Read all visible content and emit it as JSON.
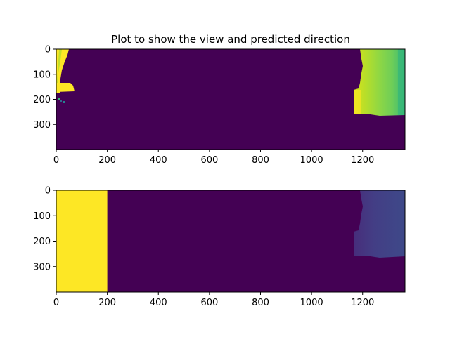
{
  "chart_data": [
    {
      "type": "heatmap",
      "title": "Plot to show the view and predicted direction",
      "image_width": 1366,
      "image_height": 400,
      "xlim": [
        0,
        1366
      ],
      "ylim": [
        400,
        0
      ],
      "xticks": [
        0,
        200,
        400,
        600,
        800,
        1000,
        1200
      ],
      "yticks": [
        0,
        100,
        200,
        300
      ],
      "colormap": "viridis",
      "regions": [
        {
          "name": "left-obstacle",
          "x_range": [
            0,
            75
          ],
          "y_range": [
            0,
            170
          ],
          "value": 0.96
        },
        {
          "name": "right-obstacle",
          "x_range": [
            1165,
            1366
          ],
          "y_range": [
            0,
            265
          ],
          "value_gradient": [
            0.93,
            0.6
          ]
        }
      ]
    },
    {
      "type": "heatmap",
      "title": "",
      "image_width": 1366,
      "image_height": 400,
      "xlim": [
        0,
        1366
      ],
      "ylim": [
        400,
        0
      ],
      "xticks": [
        0,
        200,
        400,
        600,
        800,
        1000,
        1200
      ],
      "yticks": [
        0,
        100,
        200,
        300
      ],
      "colormap": "viridis",
      "regions": [
        {
          "name": "predicted-direction-band",
          "x_range": [
            0,
            200
          ],
          "y_range": [
            0,
            400
          ],
          "value": 1.0
        },
        {
          "name": "right-obstacle",
          "x_range": [
            1165,
            1366
          ],
          "y_range": [
            0,
            265
          ],
          "value_gradient": [
            0.23,
            0.32
          ]
        }
      ]
    }
  ],
  "colors": {
    "background": "#440154",
    "bright": "#fde725",
    "yellow_green": "#b5de2b",
    "green": "#6ece58",
    "teal_green": "#35b779",
    "dark_purple_blue": "#433e85",
    "purple_blue": "#3e4989",
    "axis": "#000000"
  }
}
